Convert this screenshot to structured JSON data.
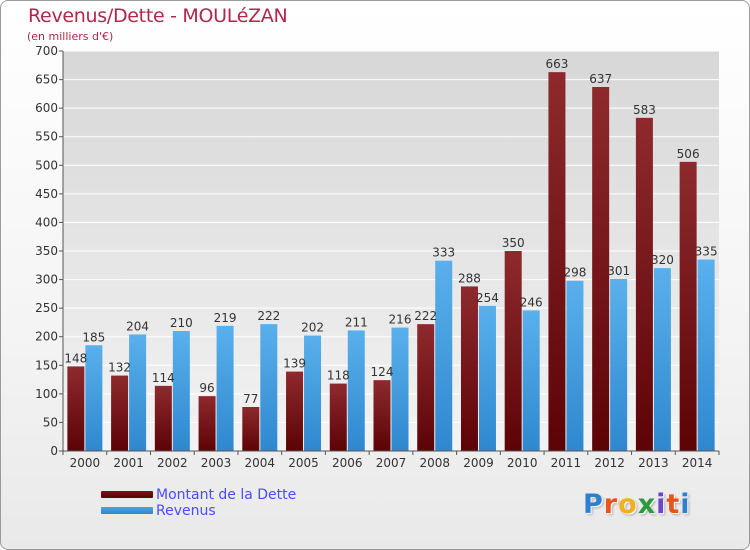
{
  "title": "Revenus/Dette - MOULéZAN",
  "subtitle": "(en milliers d'€)",
  "legend": {
    "debt_label": "Montant de la Dette",
    "revenue_label": "Revenus"
  },
  "logo": {
    "text": "Proxiti",
    "letter_colors": [
      "#2f7fd0",
      "#e8541b",
      "#f2b01e",
      "#2b9a3c",
      "#6a46c9",
      "#e8541b",
      "#2f7fd0"
    ]
  },
  "colors": {
    "debt": "#7a1216",
    "debt_dark": "#5a0306",
    "revenue": "#4aa3e3",
    "revenue_dark": "#2c87cc",
    "title": "#b2264a",
    "legend_text": "#4b4bff"
  },
  "chart_data": {
    "type": "bar",
    "title": "Revenus/Dette - MOULéZAN",
    "ylabel": "(en milliers d'€)",
    "xlabel": "",
    "categories": [
      "2000",
      "2001",
      "2002",
      "2003",
      "2004",
      "2005",
      "2006",
      "2007",
      "2008",
      "2009",
      "2010",
      "2011",
      "2012",
      "2013",
      "2014"
    ],
    "series": [
      {
        "name": "Montant de la Dette",
        "values": [
          148,
          132,
          114,
          96,
          77,
          139,
          118,
          124,
          222,
          288,
          350,
          663,
          637,
          583,
          506
        ]
      },
      {
        "name": "Revenus",
        "values": [
          185,
          204,
          210,
          219,
          222,
          202,
          211,
          216,
          333,
          254,
          246,
          298,
          301,
          320,
          335
        ]
      }
    ],
    "ylim": [
      0,
      700
    ],
    "yticks": [
      0,
      50,
      100,
      150,
      200,
      250,
      300,
      350,
      400,
      450,
      500,
      550,
      600,
      650,
      700
    ],
    "grid": true,
    "legend_position": "bottom-left"
  }
}
